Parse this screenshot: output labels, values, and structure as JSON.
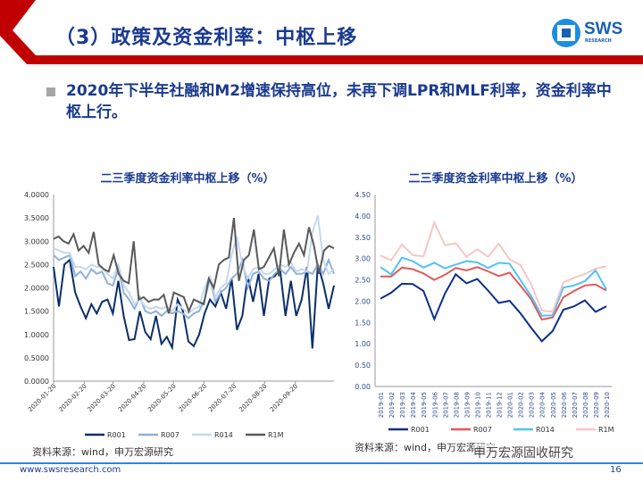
{
  "header": {
    "title": "（3）政策及资金利率：中枢上移",
    "logo_text": "SWS",
    "logo_sub": "RESEARCH"
  },
  "bullet": "2020年下半年社融和M2增速保持高位，未再下调LPR和MLF利率，资金利率中枢上行。",
  "colors": {
    "red": "#c00000",
    "navy": "#1a3a8f"
  },
  "chart_data": [
    {
      "type": "line",
      "title": "二三季度资金利率中枢上移（%）",
      "ylim": [
        0,
        4
      ],
      "yticks": [
        "0.0000",
        "0.5000",
        "1.0000",
        "1.5000",
        "2.0000",
        "2.5000",
        "3.0000",
        "3.5000",
        "4.0000"
      ],
      "xticks": [
        "2020-01-20",
        "2020-02-20",
        "2020-03-20",
        "2020-04-20",
        "2020-05-20",
        "2020-06-20",
        "2020-07-20",
        "2020-08-20",
        "2020-09-20"
      ],
      "legend_position": "bottom",
      "series": [
        {
          "name": "R001",
          "color": "#0b2f6b",
          "values": [
            2.45,
            1.6,
            2.5,
            2.6,
            1.9,
            1.6,
            1.35,
            1.65,
            1.45,
            1.7,
            1.75,
            1.45,
            2.15,
            1.4,
            0.88,
            0.9,
            1.5,
            1.05,
            0.9,
            1.4,
            0.8,
            0.95,
            0.72,
            1.75,
            1.5,
            0.85,
            0.75,
            1.0,
            1.45,
            1.75,
            1.6,
            1.9,
            1.55,
            2.2,
            1.1,
            1.4,
            2.25,
            1.7,
            2.3,
            1.4,
            2.2,
            2.25,
            2.4,
            1.4,
            2.15,
            1.4,
            1.75,
            2.45,
            0.7,
            2.5,
            2.1,
            1.55,
            2.05
          ]
        },
        {
          "name": "R007",
          "color": "#8fb0dc",
          "values": [
            2.7,
            2.6,
            2.65,
            2.7,
            2.25,
            2.35,
            2.2,
            2.4,
            2.3,
            2.35,
            2.1,
            2.05,
            2.4,
            1.9,
            1.75,
            1.55,
            1.8,
            1.5,
            1.45,
            1.5,
            1.4,
            1.5,
            1.45,
            1.5,
            1.45,
            1.35,
            1.45,
            1.5,
            1.75,
            2.2,
            1.7,
            1.9,
            2.0,
            2.2,
            2.3,
            2.6,
            2.0,
            2.3,
            2.35,
            2.2,
            2.15,
            2.3,
            2.4,
            2.3,
            2.45,
            2.3,
            2.3,
            2.35,
            2.3,
            2.5,
            2.3,
            2.6,
            2.3
          ]
        },
        {
          "name": "R014",
          "color": "#c5d8f0",
          "values": [
            2.85,
            2.8,
            2.75,
            2.75,
            2.45,
            2.45,
            2.4,
            2.5,
            2.45,
            2.45,
            2.3,
            2.2,
            2.5,
            2.05,
            1.9,
            1.65,
            1.75,
            1.6,
            1.55,
            1.6,
            1.55,
            1.6,
            1.5,
            1.65,
            1.55,
            1.45,
            1.55,
            1.6,
            2.0,
            2.25,
            1.8,
            2.0,
            2.1,
            2.7,
            3.1,
            2.5,
            2.2,
            2.4,
            2.45,
            2.3,
            2.3,
            2.4,
            2.5,
            2.45,
            2.55,
            2.35,
            2.4,
            2.35,
            3.2,
            3.55,
            2.6,
            2.3,
            2.4
          ]
        },
        {
          "name": "R1M",
          "color": "#595959",
          "values": [
            3.05,
            3.1,
            3.0,
            2.95,
            3.15,
            2.8,
            2.9,
            2.75,
            3.2,
            2.5,
            2.4,
            2.35,
            2.7,
            2.3,
            2.15,
            2.1,
            3.0,
            1.75,
            1.8,
            1.7,
            1.75,
            1.75,
            1.85,
            1.45,
            1.9,
            1.85,
            1.8,
            1.5,
            1.75,
            1.7,
            1.65,
            2.2,
            2.0,
            2.5,
            2.6,
            2.65,
            3.5,
            2.15,
            2.6,
            2.7,
            3.25,
            2.4,
            2.45,
            2.65,
            2.85,
            2.25,
            3.25,
            2.5,
            2.75,
            2.95,
            2.7,
            3.3,
            2.9,
            2.3,
            2.8,
            2.9,
            2.85
          ]
        }
      ],
      "source": "资料来源：wind，申万宏源研究"
    },
    {
      "type": "line",
      "title": "二三季度资金利率中枢上移（%）",
      "ylim": [
        0,
        4.5
      ],
      "yticks": [
        "0.00",
        "0.50",
        "1.00",
        "1.50",
        "2.00",
        "2.50",
        "3.00",
        "3.50",
        "4.00",
        "4.50"
      ],
      "categories": [
        "2019-01",
        "2019-02",
        "2019-03",
        "2019-04",
        "2019-05",
        "2019-06",
        "2019-07",
        "2019-08",
        "2019-09",
        "2019-10",
        "2019-11",
        "2019-12",
        "2020-01",
        "2020-02",
        "2020-03",
        "2020-04",
        "2020-05",
        "2020-06",
        "2020-07",
        "2020-08",
        "2020-09",
        "2020-10"
      ],
      "legend_position": "bottom",
      "series": [
        {
          "name": "R001",
          "color": "#0b2f8a",
          "values": [
            2.06,
            2.2,
            2.41,
            2.4,
            2.24,
            1.58,
            2.18,
            2.63,
            2.42,
            2.52,
            2.25,
            1.96,
            2.01,
            1.72,
            1.38,
            1.06,
            1.3,
            1.8,
            1.88,
            2.02,
            1.75,
            1.88
          ]
        },
        {
          "name": "R007",
          "color": "#e05a5a",
          "values": [
            2.58,
            2.58,
            2.79,
            2.75,
            2.65,
            2.5,
            2.62,
            2.78,
            2.72,
            2.8,
            2.7,
            2.59,
            2.67,
            2.37,
            2.05,
            1.57,
            1.62,
            2.09,
            2.24,
            2.37,
            2.39,
            2.25
          ]
        },
        {
          "name": "R014",
          "color": "#4fc3f7",
          "values": [
            2.8,
            2.63,
            3.02,
            2.94,
            2.79,
            2.9,
            2.77,
            2.86,
            2.94,
            2.91,
            2.78,
            2.9,
            2.88,
            2.5,
            2.12,
            1.66,
            1.67,
            2.32,
            2.37,
            2.47,
            2.72,
            2.28
          ]
        },
        {
          "name": "R1M",
          "color": "#f7c6c6",
          "values": [
            3.07,
            2.96,
            3.33,
            3.08,
            3.05,
            3.85,
            3.31,
            3.36,
            3.04,
            3.22,
            3.04,
            3.35,
            2.98,
            2.85,
            2.4,
            1.78,
            1.75,
            2.44,
            2.55,
            2.64,
            2.76,
            2.82
          ]
        }
      ],
      "source": "资料来源：wind，申万宏源研究"
    }
  ],
  "footer": {
    "url": "www.swsresearch.com",
    "page": "16",
    "watermark": "申万宏源固收研究"
  }
}
